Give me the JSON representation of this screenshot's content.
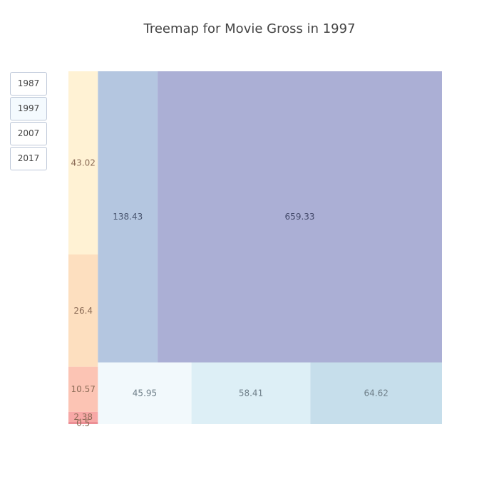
{
  "title": "Treemap for Movie Gross in 1997",
  "year_buttons": [
    {
      "label": "1987",
      "active": false
    },
    {
      "label": "1997",
      "active": true
    },
    {
      "label": "2007",
      "active": false
    },
    {
      "label": "2017",
      "active": false
    }
  ],
  "chart_data": {
    "type": "treemap",
    "title": "Treemap for Movie Gross in 1997",
    "values": [
      {
        "label": "43.02",
        "value": 43.02,
        "color": "#fff2d4"
      },
      {
        "label": "26.4",
        "value": 26.4,
        "color": "#fddfbf"
      },
      {
        "label": "10.57",
        "value": 10.57,
        "color": "#fcc4b4"
      },
      {
        "label": "2.38",
        "value": 2.38,
        "color": "#f7a8a6"
      },
      {
        "label": "0.5",
        "value": 0.5,
        "color": "#ec8f95"
      },
      {
        "label": "138.43",
        "value": 138.43,
        "color": "#b4c6e0"
      },
      {
        "label": "659.33",
        "value": 659.33,
        "color": "#abafd5"
      },
      {
        "label": "45.95",
        "value": 45.95,
        "color": "#f2f9fc"
      },
      {
        "label": "58.41",
        "value": 58.41,
        "color": "#ddeff6"
      },
      {
        "label": "64.62",
        "value": 64.62,
        "color": "#c6deeb"
      }
    ]
  }
}
